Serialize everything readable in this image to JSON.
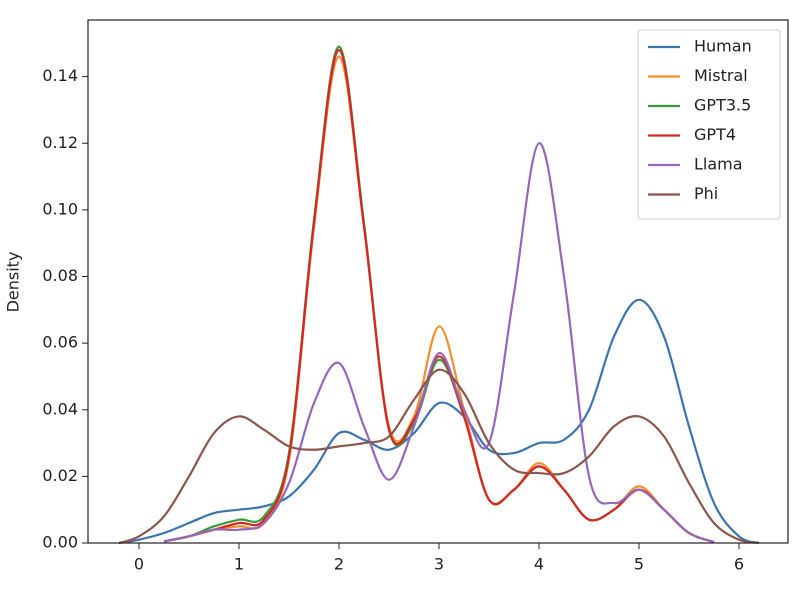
{
  "chart_data": {
    "type": "line",
    "y_label": "Density",
    "x": [
      -0.2,
      0,
      0.25,
      0.5,
      0.75,
      1,
      1.25,
      1.5,
      1.75,
      2,
      2.25,
      2.5,
      2.75,
      3,
      3.25,
      3.5,
      3.75,
      4,
      4.25,
      4.5,
      4.75,
      5,
      5.25,
      5.5,
      5.75,
      6,
      6.2
    ],
    "series": [
      {
        "name": "Human",
        "color": "#3a75b0",
        "values": [
          0,
          0.001,
          0.003,
          0.006,
          0.009,
          0.01,
          0.011,
          0.014,
          0.022,
          0.033,
          0.031,
          0.028,
          0.033,
          0.042,
          0.038,
          0.028,
          0.027,
          0.03,
          0.031,
          0.04,
          0.062,
          0.073,
          0.062,
          0.035,
          0.012,
          0.002,
          0
        ]
      },
      {
        "name": "Mistral",
        "color": "#f28e2b",
        "values": [
          null,
          null,
          0.0005,
          0.002,
          0.004,
          0.005,
          0.006,
          0.025,
          0.095,
          0.146,
          0.095,
          0.035,
          0.038,
          0.065,
          0.04,
          0.013,
          0.016,
          0.024,
          0.016,
          0.007,
          0.01,
          0.017,
          0.01,
          0.003,
          0.0003,
          null,
          null
        ]
      },
      {
        "name": "GPT3.5",
        "color": "#3a9a3a",
        "values": [
          null,
          null,
          0.0005,
          0.002,
          0.005,
          0.007,
          0.008,
          0.027,
          0.097,
          0.149,
          0.096,
          0.034,
          0.036,
          0.055,
          0.038,
          0.013,
          0.016,
          0.023,
          0.016,
          0.007,
          0.01,
          0.016,
          0.01,
          0.003,
          0.0003,
          null,
          null
        ]
      },
      {
        "name": "GPT4",
        "color": "#d62728",
        "values": [
          null,
          null,
          0.0005,
          0.002,
          0.004,
          0.006,
          0.007,
          0.026,
          0.096,
          0.148,
          0.095,
          0.034,
          0.037,
          0.056,
          0.038,
          0.013,
          0.016,
          0.023,
          0.016,
          0.007,
          0.01,
          0.016,
          0.01,
          0.003,
          0.0003,
          null,
          null
        ]
      },
      {
        "name": "Llama",
        "color": "#9467bd",
        "values": [
          null,
          null,
          0.0005,
          0.002,
          0.004,
          0.004,
          0.006,
          0.018,
          0.042,
          0.054,
          0.035,
          0.019,
          0.035,
          0.057,
          0.04,
          0.03,
          0.075,
          0.12,
          0.08,
          0.02,
          0.012,
          0.016,
          0.01,
          0.003,
          0.0003,
          null,
          null
        ]
      },
      {
        "name": "Phi",
        "color": "#8c564b",
        "values": [
          0,
          0.002,
          0.008,
          0.02,
          0.033,
          0.038,
          0.034,
          0.029,
          0.028,
          0.029,
          0.03,
          0.032,
          0.043,
          0.052,
          0.045,
          0.03,
          0.022,
          0.021,
          0.021,
          0.026,
          0.035,
          0.038,
          0.032,
          0.018,
          0.006,
          0.001,
          0
        ]
      }
    ],
    "xlim": [
      -0.51,
      6.49
    ],
    "xticks": [
      0,
      1,
      2,
      3,
      4,
      5,
      6
    ],
    "ylim": [
      0,
      0.157
    ],
    "yticks": [
      {
        "value": 0,
        "label": "0.00"
      },
      {
        "value": 0.02,
        "label": "0.02"
      },
      {
        "value": 0.04,
        "label": "0.04"
      },
      {
        "value": 0.06,
        "label": "0.06"
      },
      {
        "value": 0.08,
        "label": "0.08"
      },
      {
        "value": 0.1,
        "label": "0.10"
      },
      {
        "value": 0.12,
        "label": "0.12"
      },
      {
        "value": 0.14,
        "label": "0.14"
      }
    ],
    "legend": "upper right"
  }
}
